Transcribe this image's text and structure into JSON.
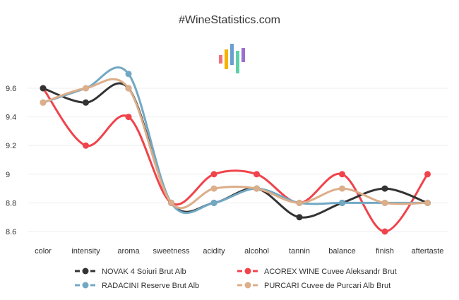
{
  "header": {
    "title": "#WineStatistics.com"
  },
  "logo": {
    "icon": "bar-logo-icon",
    "colors": [
      "#f1707f",
      "#f5b400",
      "#6a9fd0",
      "#5fd0a6",
      "#9b6fd2"
    ]
  },
  "chart_data": {
    "type": "line",
    "categories": [
      "color",
      "intensity",
      "aroma",
      "sweetness",
      "acidity",
      "alcohol",
      "tannin",
      "balance",
      "finish",
      "aftertaste"
    ],
    "ylim": [
      8.55,
      9.75
    ],
    "yticks": [
      "8.6",
      "8.8",
      "9",
      "9.2",
      "9.4",
      "9.6"
    ],
    "grid": true,
    "legend_position": "bottom",
    "series": [
      {
        "name": "NOVAK 4 Soiuri Brut Alb",
        "color": "#333333",
        "values": [
          9.6,
          9.5,
          9.6,
          8.8,
          8.8,
          8.9,
          8.7,
          8.8,
          8.9,
          8.8
        ]
      },
      {
        "name": "ACOREX WINE Cuvee Aleksandr Brut",
        "color": "#f0434b",
        "values": [
          9.6,
          9.2,
          9.4,
          8.8,
          9.0,
          9.0,
          8.8,
          9.0,
          8.6,
          9.0
        ]
      },
      {
        "name": "RADACINI Reserve Brut Alb",
        "color": "#72a8c4",
        "values": [
          9.5,
          9.6,
          9.7,
          8.8,
          8.8,
          8.9,
          8.8,
          8.8,
          8.8,
          8.8
        ]
      },
      {
        "name": "PURCARI Cuvee de Purcari Alb Brut",
        "color": "#dcae8a",
        "values": [
          9.5,
          9.6,
          9.6,
          8.8,
          8.9,
          8.9,
          8.8,
          8.9,
          8.8,
          8.8
        ]
      }
    ]
  }
}
